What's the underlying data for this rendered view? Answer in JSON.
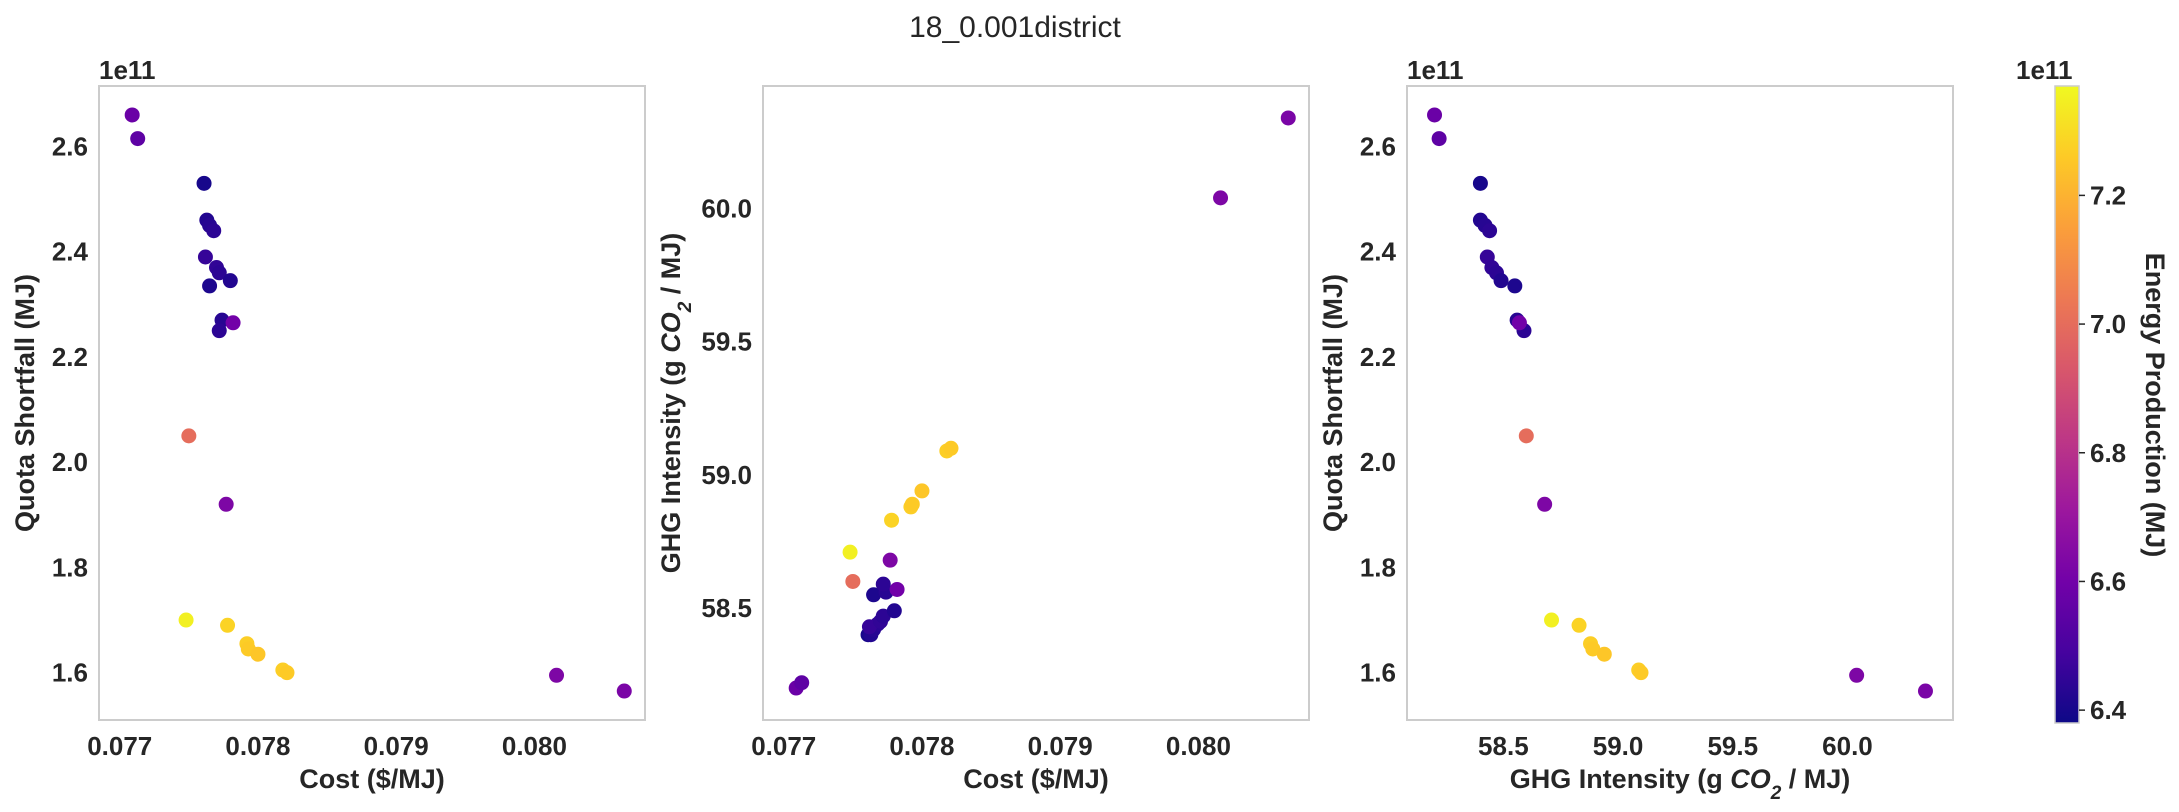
{
  "figure": {
    "title": "18_0.001district"
  },
  "colorbar": {
    "label": "Energy Production (MJ)",
    "offset": "1e11",
    "ticks": [
      6.4,
      6.6,
      6.8,
      7.0,
      7.2
    ],
    "tick_labels": [
      "6.4",
      "6.6",
      "6.8",
      "7.0",
      "7.2"
    ],
    "range": [
      6.38,
      7.37
    ],
    "colormap": "plasma",
    "colormap_stops": [
      "#0d0887",
      "#46039f",
      "#7201a8",
      "#9c179e",
      "#bd3786",
      "#d8576b",
      "#ed7953",
      "#fb9f3a",
      "#fdca26",
      "#f0f921"
    ]
  },
  "chart_data": [
    {
      "type": "scatter",
      "title": "",
      "xlabel": "Cost ($/MJ)",
      "ylabel": "Quota Shortfall (MJ)",
      "y_offset_label": "1e11",
      "x_field": "cost",
      "y_field": "shortfall",
      "xlim": [
        0.07685,
        0.0808
      ],
      "ylim": [
        1.51,
        2.715
      ],
      "xticks": [
        0.077,
        0.078,
        0.079,
        0.08
      ],
      "xtick_labels": [
        "0.077",
        "0.078",
        "0.079",
        "0.080"
      ],
      "yticks": [
        1.6,
        1.8,
        2.0,
        2.2,
        2.4,
        2.6
      ],
      "ytick_labels": [
        "1.6",
        "1.8",
        "2.0",
        "2.2",
        "2.4",
        "2.6"
      ],
      "grid": false
    },
    {
      "type": "scatter",
      "title": "",
      "xlabel": "Cost ($/MJ)",
      "ylabel": "GHG Intensity (g CO2 / MJ)",
      "y_offset_label": "",
      "x_field": "cost",
      "y_field": "ghg",
      "xlim": [
        0.07685,
        0.0808
      ],
      "ylim": [
        58.08,
        60.46
      ],
      "xticks": [
        0.077,
        0.078,
        0.079,
        0.08
      ],
      "xtick_labels": [
        "0.077",
        "0.078",
        "0.079",
        "0.080"
      ],
      "yticks": [
        58.5,
        59.0,
        59.5,
        60.0
      ],
      "ytick_labels": [
        "58.5",
        "59.0",
        "59.5",
        "60.0"
      ],
      "grid": false
    },
    {
      "type": "scatter",
      "title": "",
      "xlabel": "GHG Intensity (g CO2 / MJ)",
      "ylabel": "Quota Shortfall (MJ)",
      "y_offset_label": "1e11",
      "x_field": "ghg",
      "y_field": "shortfall",
      "xlim": [
        58.08,
        60.46
      ],
      "ylim": [
        1.51,
        2.715
      ],
      "xticks": [
        58.5,
        59.0,
        59.5,
        60.0
      ],
      "xtick_labels": [
        "58.5",
        "59.0",
        "59.5",
        "60.0"
      ],
      "yticks": [
        1.6,
        1.8,
        2.0,
        2.2,
        2.4,
        2.6
      ],
      "ytick_labels": [
        "1.6",
        "1.8",
        "2.0",
        "2.2",
        "2.4",
        "2.6"
      ],
      "grid": false
    }
  ],
  "points": {
    "fields": [
      "cost",
      "ghg",
      "shortfall",
      "energy"
    ],
    "rows": [
      [
        0.07709,
        58.2,
        2.66,
        6.58
      ],
      [
        0.07713,
        58.22,
        2.615,
        6.55
      ],
      [
        0.07761,
        58.4,
        2.53,
        6.4
      ],
      [
        0.07763,
        58.4,
        2.46,
        6.42
      ],
      [
        0.07765,
        58.42,
        2.45,
        6.43
      ],
      [
        0.07768,
        58.44,
        2.44,
        6.44
      ],
      [
        0.07762,
        58.43,
        2.39,
        6.46
      ],
      [
        0.0777,
        58.45,
        2.37,
        6.45
      ],
      [
        0.07772,
        58.47,
        2.36,
        6.44
      ],
      [
        0.0778,
        58.49,
        2.345,
        6.42
      ],
      [
        0.07765,
        58.55,
        2.335,
        6.41
      ],
      [
        0.07774,
        58.56,
        2.27,
        6.43
      ],
      [
        0.07772,
        58.59,
        2.25,
        6.44
      ],
      [
        0.07782,
        58.57,
        2.265,
        6.6
      ],
      [
        0.0775,
        58.6,
        2.05,
        7.0
      ],
      [
        0.07777,
        58.68,
        1.92,
        6.63
      ],
      [
        0.07748,
        58.71,
        1.7,
        7.35
      ],
      [
        0.07778,
        58.83,
        1.69,
        7.28
      ],
      [
        0.07792,
        58.88,
        1.655,
        7.27
      ],
      [
        0.07793,
        58.89,
        1.645,
        7.26
      ],
      [
        0.078,
        58.94,
        1.635,
        7.25
      ],
      [
        0.07818,
        59.09,
        1.605,
        7.27
      ],
      [
        0.07821,
        59.1,
        1.6,
        7.26
      ],
      [
        0.08016,
        60.04,
        1.595,
        6.63
      ],
      [
        0.08065,
        60.34,
        1.565,
        6.62
      ]
    ]
  }
}
